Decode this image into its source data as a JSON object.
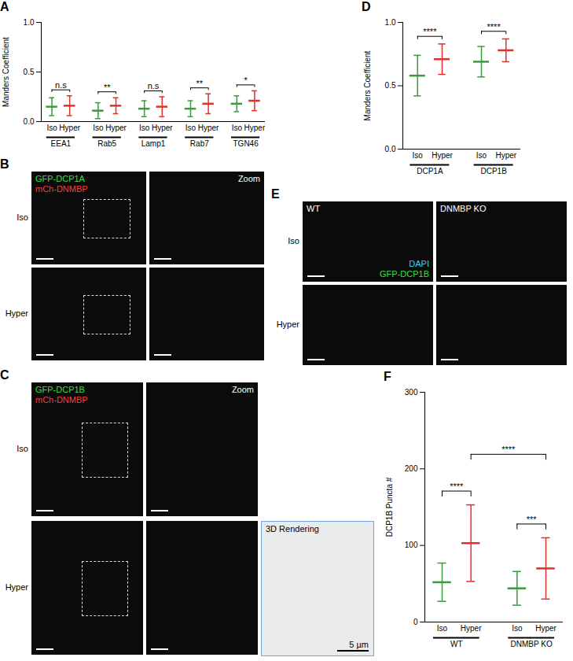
{
  "chart_data": [
    {
      "panel": "A",
      "type": "scatter",
      "ylabel": "Manders Coefficient",
      "groups": [
        "EEA1",
        "Rab5",
        "Lamp1",
        "Rab7",
        "TGN46"
      ],
      "categories": [
        "Iso",
        "Hyper"
      ],
      "colors": [
        "#3a9a3f",
        "#e0312b"
      ],
      "values": [
        [
          0.15,
          0.16
        ],
        [
          0.11,
          0.16
        ],
        [
          0.13,
          0.15
        ],
        [
          0.13,
          0.18
        ],
        [
          0.18,
          0.21
        ]
      ],
      "error": [
        [
          0.09,
          0.1
        ],
        [
          0.08,
          0.08
        ],
        [
          0.08,
          0.1
        ],
        [
          0.08,
          0.1
        ],
        [
          0.08,
          0.1
        ]
      ],
      "ylim": [
        0,
        1
      ],
      "yticks": [
        {
          "value": 0,
          "label": "0.0"
        },
        {
          "value": 0.5,
          "label": "0.5"
        },
        {
          "value": 1,
          "label": "1.0"
        }
      ],
      "comparisons": [
        {
          "between": [
            [
              "EEA1",
              "Iso"
            ],
            [
              "EEA1",
              "Hyper"
            ]
          ],
          "label": "n.s"
        },
        {
          "between": [
            [
              "Rab5",
              "Iso"
            ],
            [
              "Rab5",
              "Hyper"
            ]
          ],
          "label": "**"
        },
        {
          "between": [
            [
              "Lamp1",
              "Iso"
            ],
            [
              "Lamp1",
              "Hyper"
            ]
          ],
          "label": "n.s"
        },
        {
          "between": [
            [
              "Rab7",
              "Iso"
            ],
            [
              "Rab7",
              "Hyper"
            ]
          ],
          "label": "**"
        },
        {
          "between": [
            [
              "TGN46",
              "Iso"
            ],
            [
              "TGN46",
              "Hyper"
            ]
          ],
          "label": "*"
        }
      ]
    },
    {
      "panel": "D",
      "type": "scatter",
      "ylabel": "Manders Coefficient",
      "groups": [
        "DCP1A",
        "DCP1B"
      ],
      "categories": [
        "Iso",
        "Hyper"
      ],
      "colors": [
        "#3a9a3f",
        "#e0312b"
      ],
      "values": [
        [
          0.58,
          0.71
        ],
        [
          0.69,
          0.78
        ]
      ],
      "error": [
        [
          0.16,
          0.12
        ],
        [
          0.12,
          0.09
        ]
      ],
      "ylim": [
        0,
        1
      ],
      "yticks": [
        {
          "value": 0,
          "label": "0.0"
        },
        {
          "value": 0.5,
          "label": "0.5"
        },
        {
          "value": 1,
          "label": "1.0"
        }
      ],
      "comparisons": [
        {
          "between": [
            [
              "DCP1A",
              "Iso"
            ],
            [
              "DCP1A",
              "Hyper"
            ]
          ],
          "label": "****"
        },
        {
          "between": [
            [
              "DCP1B",
              "Iso"
            ],
            [
              "DCP1B",
              "Hyper"
            ]
          ],
          "label": "****"
        }
      ]
    },
    {
      "panel": "F",
      "type": "scatter",
      "ylabel": "DCP1B Puncta #",
      "groups": [
        "WT",
        "DNMBP KO"
      ],
      "categories": [
        "Iso",
        "Hyper"
      ],
      "colors": [
        "#3a9a3f",
        "#e0312b"
      ],
      "values": [
        [
          52,
          103
        ],
        [
          44,
          70
        ]
      ],
      "error": [
        [
          25,
          50
        ],
        [
          22,
          40
        ]
      ],
      "ylim": [
        0,
        300
      ],
      "yticks": [
        0,
        100,
        200,
        300
      ],
      "comparisons": [
        {
          "between": [
            [
              "WT",
              "Iso"
            ],
            [
              "WT",
              "Hyper"
            ]
          ],
          "label": "****"
        },
        {
          "between": [
            [
              "DNMBP KO",
              "Iso"
            ],
            [
              "DNMBP KO",
              "Hyper"
            ]
          ],
          "label": "***"
        },
        {
          "between": [
            [
              "WT",
              "Hyper"
            ],
            [
              "DNMBP KO",
              "Hyper"
            ]
          ],
          "label": "****"
        }
      ]
    }
  ],
  "image_panels": [
    {
      "panel": "B",
      "rows": [
        "Iso",
        "Hyper"
      ],
      "channels": [
        {
          "name": "GFP-DCP1A",
          "color": "#3fdc4f"
        },
        {
          "name": "mCh-DNMBP",
          "color": "#ff3b3b"
        }
      ],
      "zoom_label": "Zoom"
    },
    {
      "panel": "C",
      "rows": [
        "Iso",
        "Hyper"
      ],
      "channels": [
        {
          "name": "GFP-DCP1B",
          "color": "#3fdc4f"
        },
        {
          "name": "mCh-DNMBP",
          "color": "#ff3b3b"
        }
      ],
      "zoom_label": "Zoom",
      "rendering_label": "3D Rendering",
      "scale_label": "5 µm"
    },
    {
      "panel": "E",
      "rows": [
        "Iso",
        "Hyper"
      ],
      "columns": [
        "WT",
        "DNMBP KO"
      ],
      "channels": [
        {
          "name": "DAPI",
          "color": "#3fd4e0"
        },
        {
          "name": "GFP-DCP1B",
          "color": "#3fdc4f"
        }
      ]
    }
  ]
}
